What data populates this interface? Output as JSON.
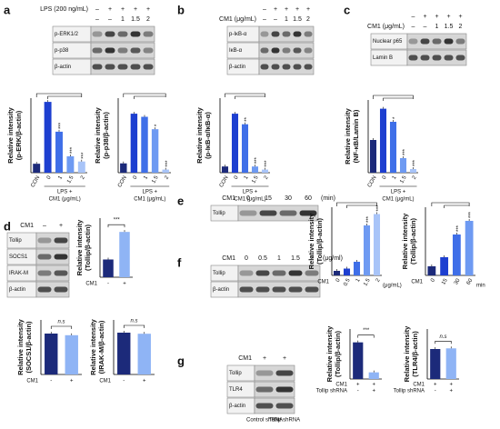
{
  "blots": [
    {
      "letter": "a",
      "header": [
        {
          "label": "LPS (200 ng/mL)",
          "lanes": [
            "–",
            "+",
            "+",
            "+",
            "+"
          ]
        },
        {
          "lanes": [
            "–",
            "–",
            "1",
            "1.5",
            "2"
          ]
        }
      ],
      "bands": [
        "p-ERK1/2",
        "p-p38",
        "β-actin"
      ]
    },
    {
      "letter": "b",
      "header": [
        {
          "lanes": [
            "–",
            "+",
            "+",
            "+",
            "+"
          ]
        },
        {
          "label": "CM1 (μg/mL)",
          "lanes": [
            "–",
            "–",
            "1",
            "1.5",
            "2"
          ]
        }
      ],
      "bands": [
        "p-IκB-α",
        "IκB-α",
        "β-actin"
      ]
    },
    {
      "letter": "c",
      "header": [
        {
          "lanes": [
            "–",
            "+",
            "+",
            "+",
            "+"
          ]
        },
        {
          "label": "CM1 (μg/mL)",
          "lanes": [
            "–",
            "–",
            "1",
            "1.5",
            "2"
          ]
        }
      ],
      "bands": [
        "Nuclear p65",
        "Lamin B"
      ]
    },
    {
      "letter": "d",
      "header": [
        {
          "label": "CM1",
          "lanes": [
            "–",
            "+"
          ]
        }
      ],
      "bands": [
        "Tollip",
        "SOCS1",
        "IRAK-M",
        "β-actin"
      ]
    },
    {
      "letter": "e",
      "header": [
        {
          "label": "CM1",
          "lanes": [
            "0",
            "15",
            "30",
            "60"
          ],
          "unit": "(min)"
        }
      ],
      "bands": [
        "Tollip"
      ]
    },
    {
      "letter": "f",
      "header": [
        {
          "label": "CM1",
          "lanes": [
            "0",
            "0.5",
            "1",
            "1.5",
            "2"
          ],
          "unit": "(μg/ml)"
        }
      ],
      "bands": [
        "Tollip",
        "β-actin"
      ]
    },
    {
      "letter": "g",
      "header": [
        {
          "label": "CM1",
          "lanes": [
            "+",
            "+"
          ]
        }
      ],
      "bands": [
        "Tollip",
        "TLR4",
        "β-actin"
      ],
      "footer": [
        "Control shRNA",
        "Tollip shRNA"
      ]
    }
  ],
  "chart_data": [
    {
      "type": "bar",
      "ylabel": [
        "Relative intensity",
        "(p-ERK/β-actin)"
      ],
      "categories": [
        "CON",
        "0",
        "1",
        "1.5",
        "2"
      ],
      "group_label": [
        "LPS +",
        "CM1 (μg/mL)"
      ],
      "values": [
        0.12,
        0.95,
        0.55,
        0.22,
        0.15
      ],
      "ylim": [
        0,
        1
      ],
      "colors": [
        "#1c2a7a",
        "#1d3fd0",
        "#3f6fe8",
        "#6e9af2",
        "#a8c4f8"
      ],
      "annotations": [
        {
          "bar": 2,
          "text": "***"
        },
        {
          "bar": 3,
          "text": "***"
        },
        {
          "bar": 4,
          "text": "***"
        }
      ]
    },
    {
      "type": "bar",
      "ylabel": [
        "Relative intensity",
        "(p-p38/β-actin)"
      ],
      "categories": [
        "CON",
        "0",
        "1",
        "1.5",
        "2"
      ],
      "group_label": [
        "LPS +",
        "CM1 (μg/mL)"
      ],
      "values": [
        0.15,
        0.95,
        0.9,
        0.7,
        0.05
      ],
      "ylim": [
        0,
        1.2
      ],
      "colors": [
        "#1c2a7a",
        "#1d3fd0",
        "#3f6fe8",
        "#6e9af2",
        "#a8c4f8"
      ],
      "annotations": [
        {
          "bar": 3,
          "text": "*"
        },
        {
          "bar": 4,
          "text": "***"
        }
      ]
    },
    {
      "type": "bar",
      "ylabel": [
        "Relative intensity",
        "(p-IκB-α/IκB-α)"
      ],
      "categories": [
        "CON",
        "0",
        "1",
        "1.5",
        "2"
      ],
      "group_label": [
        "LPS +",
        "CM1 (μg/mL)"
      ],
      "values": [
        0.1,
        0.95,
        0.78,
        0.1,
        0.05
      ],
      "ylim": [
        0,
        1.2
      ],
      "colors": [
        "#1c2a7a",
        "#1d3fd0",
        "#3f6fe8",
        "#6e9af2",
        "#a8c4f8"
      ],
      "annotations": [
        {
          "bar": 2,
          "text": "**"
        },
        {
          "bar": 3,
          "text": "***"
        },
        {
          "bar": 4,
          "text": "***"
        }
      ]
    },
    {
      "type": "bar",
      "ylabel": [
        "Relative intensity",
        "(NF-κB/Lamin B)"
      ],
      "categories": [
        "CON",
        "0",
        "1",
        "1.5",
        "2"
      ],
      "group_label": [
        "LPS +",
        "CM1 (μg/mL)"
      ],
      "values": [
        0.45,
        0.88,
        0.7,
        0.2,
        0.05
      ],
      "ylim": [
        0,
        1
      ],
      "colors": [
        "#1c2a7a",
        "#1d3fd0",
        "#3f6fe8",
        "#6e9af2",
        "#a8c4f8"
      ],
      "annotations": [
        {
          "bar": 2,
          "text": "*"
        },
        {
          "bar": 3,
          "text": "***"
        },
        {
          "bar": 4,
          "text": "***"
        }
      ]
    },
    {
      "type": "bar",
      "ylabel": [
        "Relative intensity",
        "(Tollip/β-actin)"
      ],
      "x_prefix": "CM1",
      "categories": [
        "-",
        "+"
      ],
      "values": [
        0.45,
        1.15
      ],
      "ylim": [
        0,
        1.5
      ],
      "colors": [
        "#1c2a7a",
        "#8fb4f5"
      ],
      "annotations": [
        {
          "bar": 1,
          "text": "***"
        }
      ]
    },
    {
      "type": "bar",
      "ylabel": [
        "Relative intensity",
        "(SOCS1/β-actin)"
      ],
      "x_prefix": "CM1",
      "categories": [
        "-",
        "+"
      ],
      "values": [
        0.75,
        0.72
      ],
      "ylim": [
        0,
        1
      ],
      "colors": [
        "#1c2a7a",
        "#8fb4f5"
      ],
      "annotations": [
        {
          "bar": 1,
          "text": "n.s"
        }
      ]
    },
    {
      "type": "bar",
      "ylabel": [
        "Relative intensity",
        "(IRAK-M/β-actin)"
      ],
      "x_prefix": "CM1",
      "categories": [
        "-",
        "+"
      ],
      "values": [
        1.15,
        1.12
      ],
      "ylim": [
        0,
        1.5
      ],
      "colors": [
        "#1c2a7a",
        "#8fb4f5"
      ],
      "annotations": [
        {
          "bar": 1,
          "text": "n.s"
        }
      ]
    },
    {
      "type": "bar",
      "ylabel": [
        "Relative intensity",
        "(Tollip/β-actin)"
      ],
      "x_prefix": "CM1",
      "categories": [
        "0",
        "0.5",
        "1",
        "1.5",
        "2"
      ],
      "x_suffix": "(μg/mL)",
      "values": [
        0.1,
        0.15,
        0.3,
        1.1,
        1.35
      ],
      "ylim": [
        0,
        1.5
      ],
      "colors": [
        "#1c2a7a",
        "#1d3fd0",
        "#3f6fe8",
        "#6e9af2",
        "#a8c4f8"
      ],
      "annotations": [
        {
          "bar": 3,
          "text": "***"
        },
        {
          "bar": 4,
          "text": "***"
        }
      ]
    },
    {
      "type": "bar",
      "ylabel": [
        "Relative intensity",
        "(Tollip/β-actin)"
      ],
      "x_prefix": "CM1",
      "categories": [
        "0",
        "15",
        "30",
        "60"
      ],
      "x_suffix": "min",
      "values": [
        0.2,
        0.4,
        0.9,
        1.2
      ],
      "ylim": [
        0,
        1.5
      ],
      "colors": [
        "#1c2a7a",
        "#1d3fd0",
        "#3f6fe8",
        "#6e9af2"
      ],
      "annotations": [
        {
          "bar": 2,
          "text": "***"
        },
        {
          "bar": 3,
          "text": "***"
        }
      ]
    },
    {
      "type": "bar",
      "ylabel": [
        "Relative intensity",
        "(Tollip/β-actin)"
      ],
      "x_rows": [
        {
          "label": "CM1",
          "values": [
            "+",
            "+"
          ]
        },
        {
          "label": "Tollip shRNA",
          "values": [
            "-",
            "+"
          ]
        }
      ],
      "values": [
        1.1,
        0.2
      ],
      "ylim": [
        0,
        1.5
      ],
      "colors": [
        "#1c2a7a",
        "#8fb4f5"
      ],
      "annotations": [
        {
          "bar": 1,
          "text": "***"
        }
      ]
    },
    {
      "type": "bar",
      "ylabel": [
        "Relative intensity",
        "(TLR4/β-actin)"
      ],
      "x_rows": [
        {
          "label": "CM1",
          "values": [
            "+",
            "+"
          ]
        },
        {
          "label": "Tollip shRNA",
          "values": [
            "-",
            "+"
          ]
        }
      ],
      "values": [
        0.9,
        0.92
      ],
      "ylim": [
        0,
        1.5
      ],
      "colors": [
        "#1c2a7a",
        "#8fb4f5"
      ],
      "annotations": [
        {
          "bar": 1,
          "text": "n.s"
        }
      ]
    }
  ]
}
